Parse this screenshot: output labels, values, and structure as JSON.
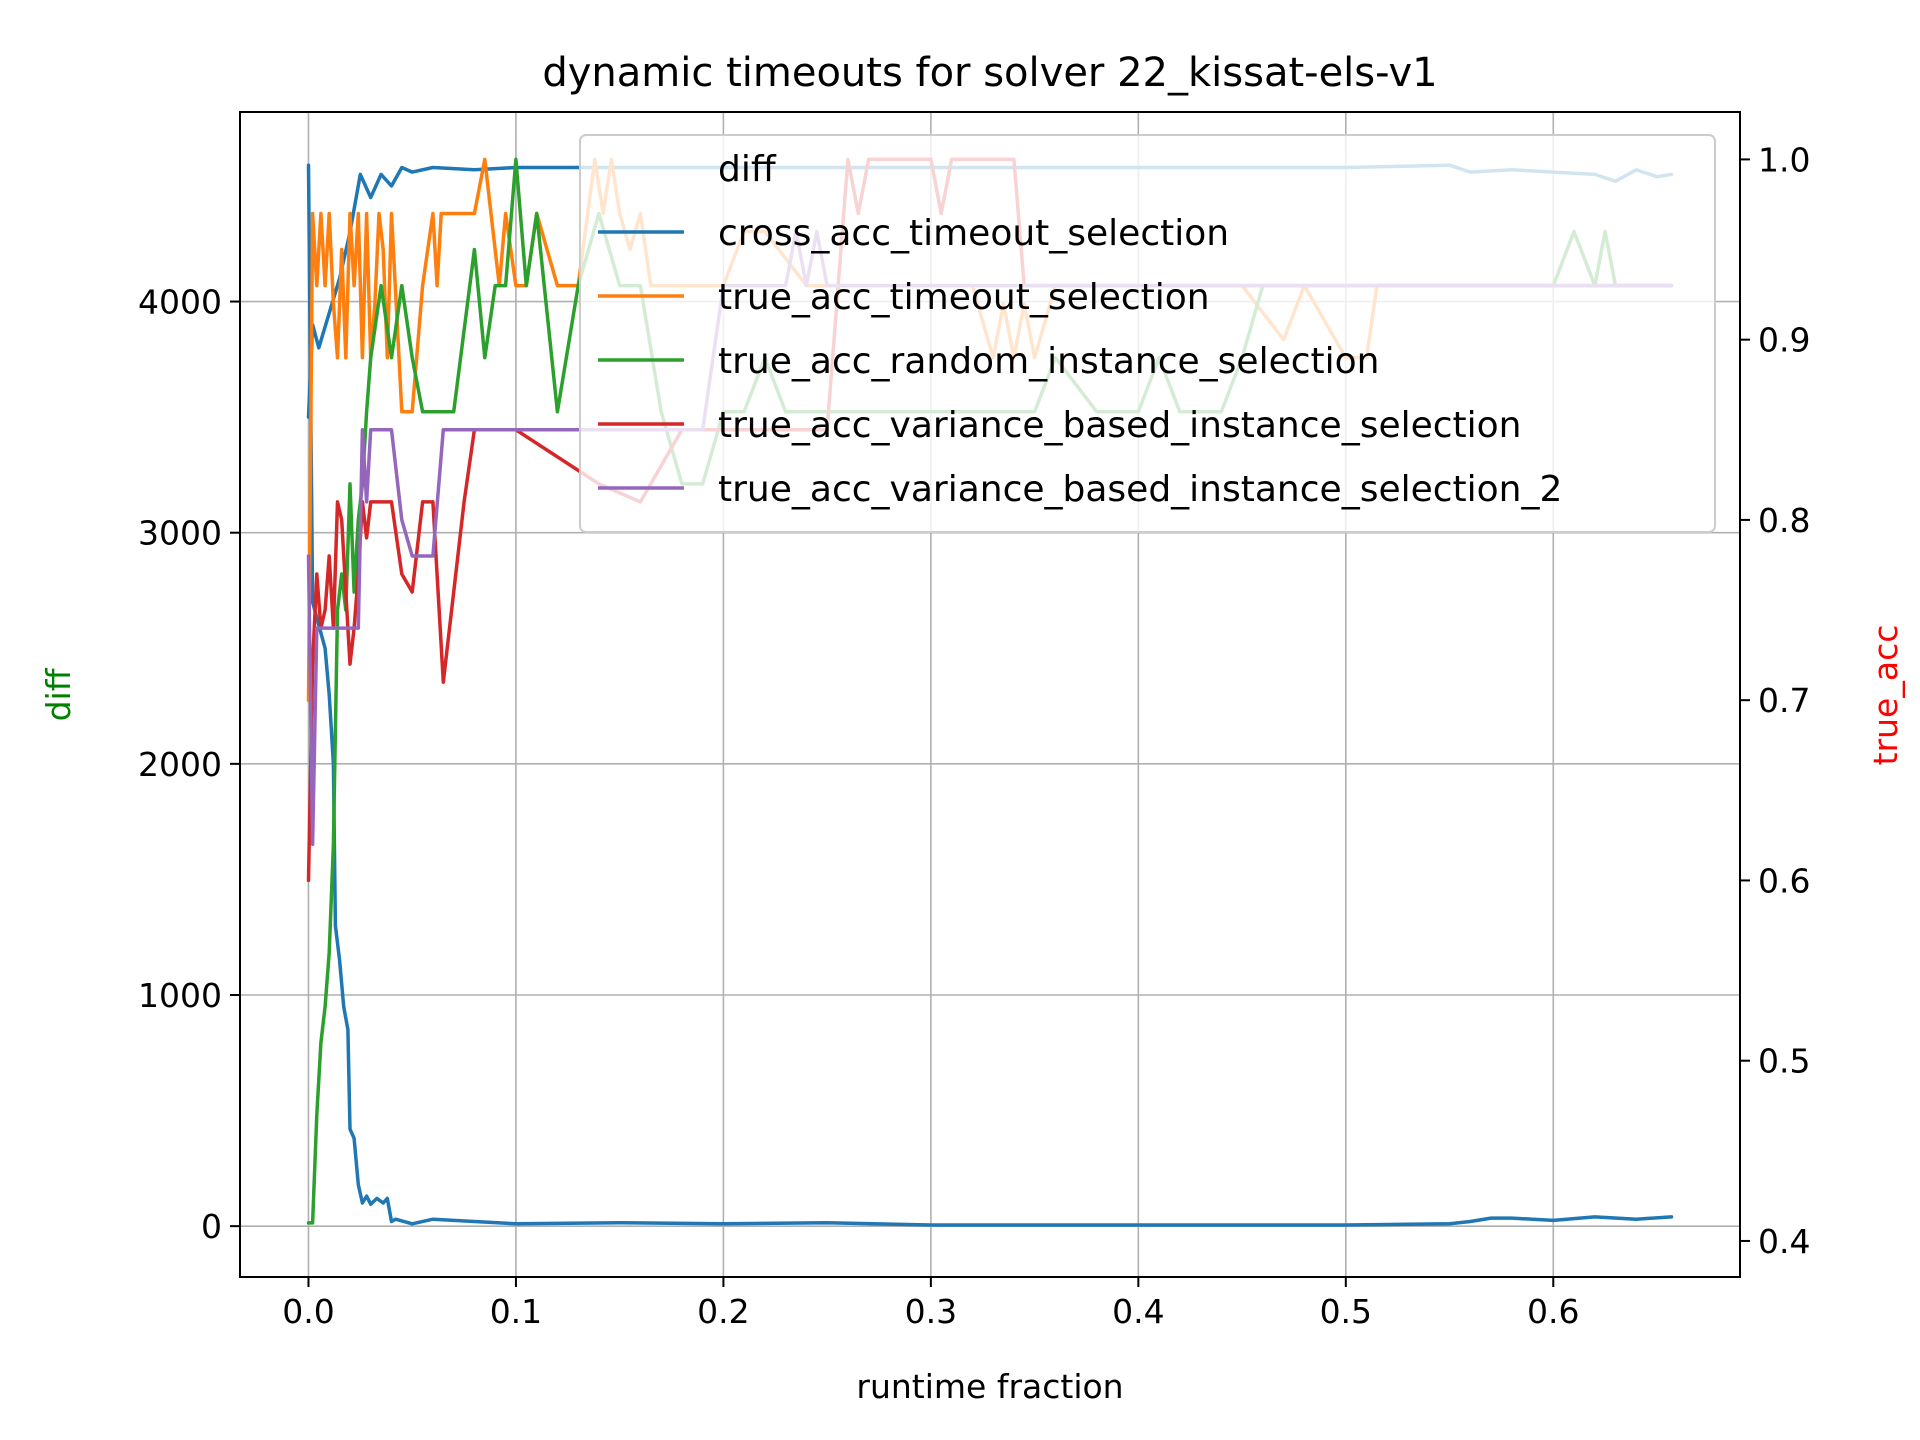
{
  "chart_data": {
    "type": "line",
    "title": "dynamic timeouts for solver 22_kissat-els-v1",
    "xlabel": "runtime fraction",
    "ylabel_left": "diff",
    "ylabel_right": "true_acc",
    "ylabel_left_color": "#008000",
    "ylabel_right_color": "#ff0000",
    "xlim": [
      -0.033,
      0.69
    ],
    "ylim_left": [
      -220,
      4820
    ],
    "ylim_right": [
      0.38,
      1.0263
    ],
    "xticks": [
      0.0,
      0.1,
      0.2,
      0.3,
      0.4,
      0.5,
      0.6
    ],
    "xtick_labels": [
      "0.0",
      "0.1",
      "0.2",
      "0.3",
      "0.4",
      "0.5",
      "0.6"
    ],
    "yticks_left": [
      0,
      1000,
      2000,
      3000,
      4000
    ],
    "ytick_labels_left": [
      "0",
      "1000",
      "2000",
      "3000",
      "4000"
    ],
    "yticks_right": [
      0.4,
      0.5,
      0.6,
      0.7,
      0.8,
      0.9,
      1.0
    ],
    "ytick_labels_right": [
      "0.4",
      "0.5",
      "0.6",
      "0.7",
      "0.8",
      "0.9",
      "1.0"
    ],
    "grid": true,
    "legend_position": "upper right",
    "legend": [
      "diff",
      "cross_acc_timeout_selection",
      "true_acc_timeout_selection",
      "true_acc_random_instance_selection",
      "true_acc_variance_based_instance_selection",
      "true_acc_variance_based_instance_selection_2"
    ],
    "series": [
      {
        "name": "diff",
        "axis": "left",
        "color": "#1f77b4",
        "x": [
          0,
          0.002,
          0.005,
          0.008,
          0.01,
          0.012,
          0.013,
          0.015,
          0.017,
          0.019,
          0.02,
          0.022,
          0.024,
          0.026,
          0.028,
          0.03,
          0.033,
          0.036,
          0.038,
          0.04,
          0.042,
          0.05,
          0.06,
          0.1,
          0.15,
          0.2,
          0.25,
          0.3,
          0.35,
          0.4,
          0.45,
          0.5,
          0.55,
          0.56,
          0.57,
          0.58,
          0.6,
          0.62,
          0.64,
          0.657
        ],
        "y": [
          4590,
          2700,
          2600,
          2500,
          2300,
          2000,
          1300,
          1150,
          950,
          850,
          420,
          380,
          180,
          100,
          130,
          95,
          120,
          100,
          120,
          20,
          30,
          10,
          30,
          10,
          15,
          10,
          15,
          5,
          5,
          5,
          5,
          5,
          10,
          20,
          35,
          35,
          25,
          40,
          30,
          40
        ]
      },
      {
        "name": "cross_acc_timeout_selection",
        "axis": "left",
        "color": "#1f77b4",
        "x": [
          0,
          0.002,
          0.005,
          0.01,
          0.015,
          0.02,
          0.025,
          0.03,
          0.035,
          0.04,
          0.045,
          0.05,
          0.06,
          0.08,
          0.1,
          0.2,
          0.3,
          0.4,
          0.5,
          0.55,
          0.56,
          0.58,
          0.6,
          0.62,
          0.63,
          0.64,
          0.65,
          0.657
        ],
        "y": [
          3500,
          3900,
          3800,
          3950,
          4100,
          4300,
          4550,
          4450,
          4550,
          4500,
          4580,
          4560,
          4580,
          4570,
          4580,
          4580,
          4580,
          4580,
          4580,
          4590,
          4560,
          4570,
          4560,
          4550,
          4520,
          4570,
          4540,
          4550
        ]
      },
      {
        "name": "true_acc_timeout_selection",
        "axis": "right",
        "color": "#ff7f0e",
        "x": [
          0,
          0.002,
          0.004,
          0.006,
          0.008,
          0.01,
          0.012,
          0.014,
          0.016,
          0.018,
          0.02,
          0.022,
          0.024,
          0.026,
          0.028,
          0.03,
          0.032,
          0.034,
          0.036,
          0.038,
          0.04,
          0.045,
          0.05,
          0.055,
          0.06,
          0.062,
          0.064,
          0.068,
          0.07,
          0.075,
          0.08,
          0.085,
          0.088,
          0.092,
          0.095,
          0.1,
          0.105,
          0.11,
          0.12,
          0.13,
          0.138,
          0.142,
          0.146,
          0.15,
          0.155,
          0.16,
          0.165,
          0.17,
          0.175,
          0.18,
          0.19,
          0.2,
          0.21,
          0.22,
          0.24,
          0.26,
          0.28,
          0.3,
          0.31,
          0.32,
          0.33,
          0.335,
          0.34,
          0.345,
          0.35,
          0.36,
          0.4,
          0.45,
          0.47,
          0.48,
          0.5,
          0.51,
          0.515,
          0.52,
          0.6,
          0.657
        ],
        "y": [
          0.7,
          0.97,
          0.93,
          0.97,
          0.93,
          0.97,
          0.92,
          0.89,
          0.95,
          0.89,
          0.97,
          0.93,
          0.97,
          0.89,
          0.97,
          0.89,
          0.92,
          0.97,
          0.95,
          0.89,
          0.97,
          0.86,
          0.86,
          0.93,
          0.97,
          0.93,
          0.97,
          0.97,
          0.97,
          0.97,
          0.97,
          1.0,
          0.97,
          0.93,
          0.97,
          0.93,
          0.93,
          0.97,
          0.93,
          0.93,
          1.0,
          0.97,
          1.0,
          0.97,
          0.95,
          0.97,
          0.93,
          0.93,
          0.93,
          0.93,
          0.93,
          0.93,
          0.96,
          0.96,
          0.93,
          0.93,
          0.93,
          0.93,
          0.93,
          0.93,
          0.89,
          0.92,
          0.89,
          0.92,
          0.89,
          0.93,
          0.93,
          0.93,
          0.9,
          0.93,
          0.89,
          0.89,
          0.93,
          0.93,
          0.93,
          0.93
        ]
      },
      {
        "name": "true_acc_random_instance_selection",
        "axis": "right",
        "color": "#2ca02c",
        "x": [
          0,
          0.002,
          0.004,
          0.006,
          0.008,
          0.01,
          0.012,
          0.014,
          0.016,
          0.018,
          0.02,
          0.022,
          0.024,
          0.026,
          0.028,
          0.03,
          0.035,
          0.04,
          0.045,
          0.05,
          0.055,
          0.06,
          0.07,
          0.08,
          0.085,
          0.09,
          0.095,
          0.1,
          0.105,
          0.11,
          0.12,
          0.13,
          0.14,
          0.15,
          0.16,
          0.17,
          0.18,
          0.19,
          0.2,
          0.21,
          0.22,
          0.23,
          0.24,
          0.25,
          0.3,
          0.35,
          0.36,
          0.38,
          0.4,
          0.41,
          0.42,
          0.44,
          0.45,
          0.46,
          0.5,
          0.6,
          0.61,
          0.62,
          0.625,
          0.63,
          0.657
        ],
        "y": [
          0.41,
          0.41,
          0.47,
          0.51,
          0.53,
          0.56,
          0.62,
          0.75,
          0.77,
          0.75,
          0.82,
          0.76,
          0.8,
          0.82,
          0.86,
          0.89,
          0.93,
          0.89,
          0.93,
          0.89,
          0.86,
          0.86,
          0.86,
          0.95,
          0.89,
          0.93,
          0.93,
          1.0,
          0.93,
          0.97,
          0.86,
          0.93,
          0.97,
          0.93,
          0.93,
          0.86,
          0.82,
          0.82,
          0.86,
          0.86,
          0.89,
          0.86,
          0.86,
          0.86,
          0.86,
          0.86,
          0.89,
          0.86,
          0.86,
          0.89,
          0.86,
          0.86,
          0.89,
          0.93,
          0.93,
          0.93,
          0.96,
          0.93,
          0.96,
          0.93,
          0.93
        ]
      },
      {
        "name": "true_acc_variance_based_instance_selection",
        "axis": "right",
        "color": "#d62728",
        "x": [
          0,
          0.002,
          0.004,
          0.006,
          0.008,
          0.01,
          0.012,
          0.014,
          0.016,
          0.018,
          0.02,
          0.022,
          0.024,
          0.026,
          0.028,
          0.03,
          0.035,
          0.04,
          0.045,
          0.05,
          0.055,
          0.06,
          0.065,
          0.07,
          0.075,
          0.08,
          0.085,
          0.1,
          0.14,
          0.16,
          0.18,
          0.19,
          0.2,
          0.25,
          0.26,
          0.265,
          0.27,
          0.28,
          0.3,
          0.305,
          0.31,
          0.32,
          0.33,
          0.34,
          0.345,
          0.35,
          0.4,
          0.5,
          0.6,
          0.657
        ],
        "y": [
          0.6,
          0.72,
          0.77,
          0.74,
          0.75,
          0.78,
          0.74,
          0.81,
          0.8,
          0.76,
          0.72,
          0.74,
          0.77,
          0.81,
          0.79,
          0.81,
          0.81,
          0.81,
          0.77,
          0.76,
          0.81,
          0.81,
          0.71,
          0.76,
          0.81,
          0.85,
          0.85,
          0.85,
          0.82,
          0.81,
          0.85,
          0.85,
          0.85,
          0.85,
          1.0,
          0.97,
          1.0,
          1.0,
          1.0,
          0.97,
          1.0,
          1.0,
          1.0,
          1.0,
          0.93,
          0.93,
          0.93,
          0.93,
          0.93,
          0.93
        ]
      },
      {
        "name": "true_acc_variance_based_instance_selection_2",
        "axis": "right",
        "color": "#9467bd",
        "x": [
          0,
          0.002,
          0.004,
          0.006,
          0.008,
          0.01,
          0.012,
          0.014,
          0.016,
          0.018,
          0.02,
          0.022,
          0.024,
          0.026,
          0.028,
          0.03,
          0.04,
          0.045,
          0.05,
          0.055,
          0.06,
          0.065,
          0.07,
          0.08,
          0.1,
          0.15,
          0.18,
          0.19,
          0.2,
          0.21,
          0.22,
          0.23,
          0.235,
          0.24,
          0.245,
          0.25,
          0.255,
          0.26,
          0.3,
          0.4,
          0.5,
          0.6,
          0.657
        ],
        "y": [
          0.78,
          0.62,
          0.74,
          0.74,
          0.74,
          0.74,
          0.74,
          0.74,
          0.74,
          0.74,
          0.74,
          0.74,
          0.74,
          0.85,
          0.81,
          0.85,
          0.85,
          0.8,
          0.78,
          0.78,
          0.78,
          0.85,
          0.85,
          0.85,
          0.85,
          0.85,
          0.85,
          0.85,
          0.93,
          0.93,
          0.93,
          0.93,
          0.96,
          0.93,
          0.96,
          0.93,
          0.93,
          0.93,
          0.93,
          0.93,
          0.93,
          0.93,
          0.93
        ]
      }
    ]
  }
}
